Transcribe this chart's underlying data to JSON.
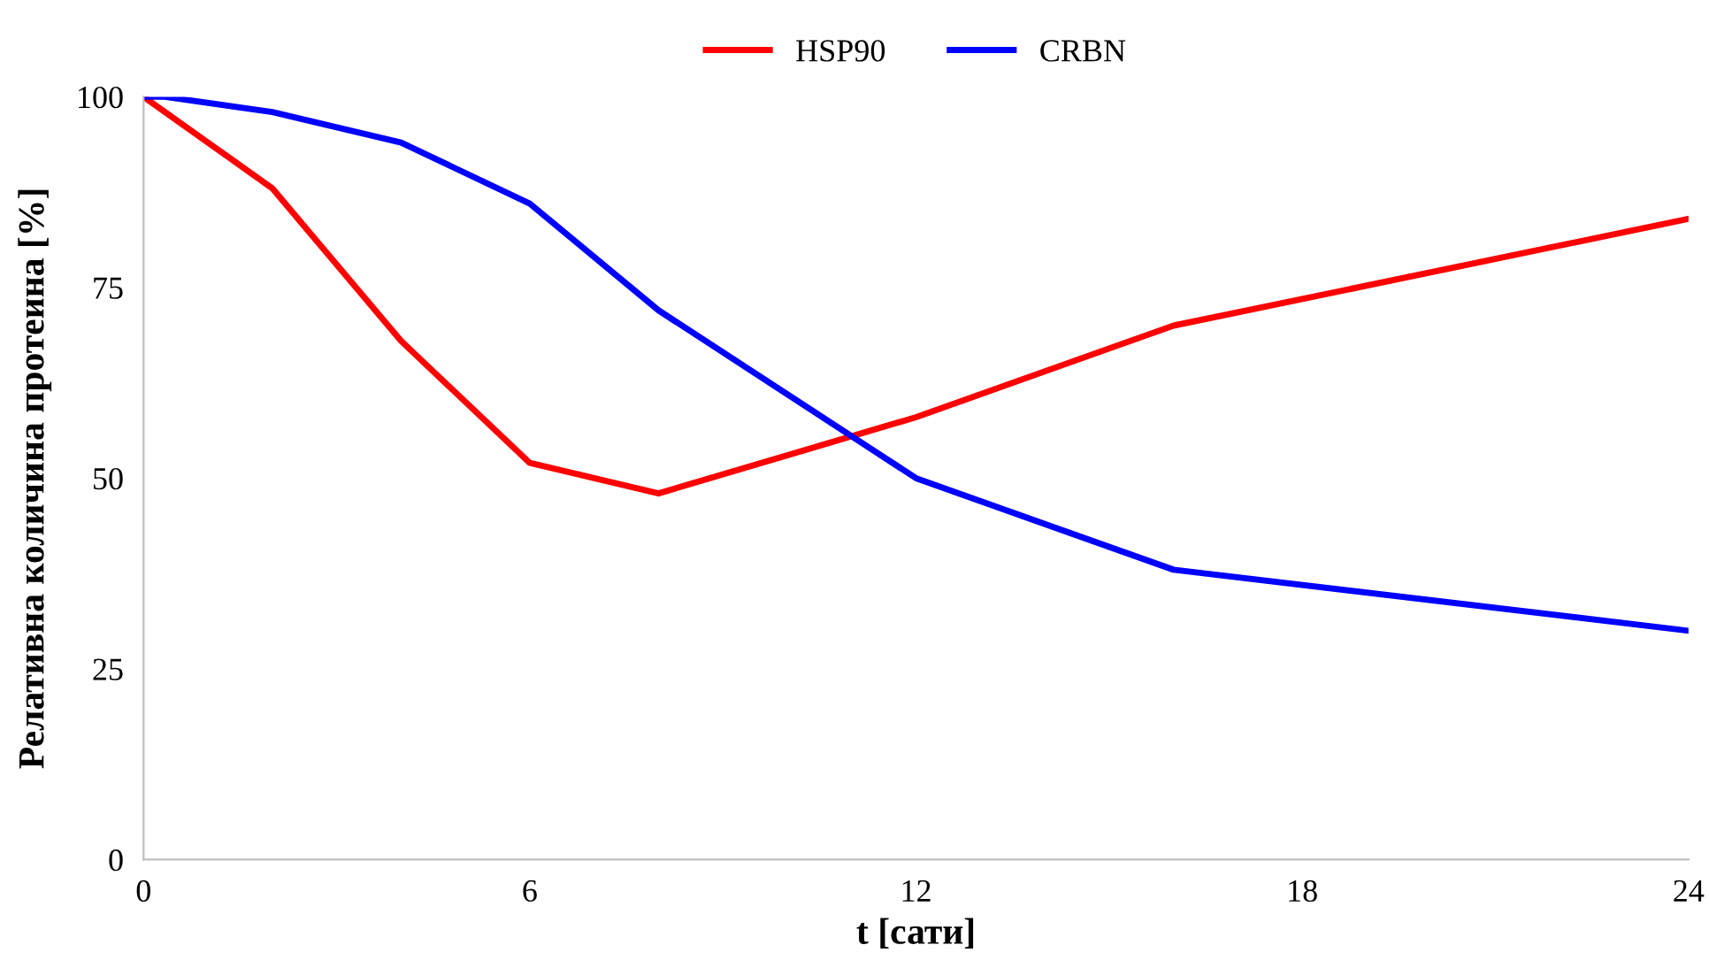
{
  "chart_data": {
    "type": "line",
    "xlabel": "t [сати]",
    "ylabel": "Релативна количина протеина [%]",
    "xlim": [
      0,
      24
    ],
    "xticks": [
      0,
      6,
      12,
      18,
      24
    ],
    "ylim": [
      0,
      100
    ],
    "yticks": [
      0,
      25,
      50,
      75,
      100
    ],
    "grid": false,
    "legend": "top",
    "marker": "none",
    "line_style": "solid",
    "series": [
      {
        "name": "HSP90",
        "color": "#ff0000",
        "x": [
          0,
          2,
          4,
          6,
          8,
          12,
          16,
          24
        ],
        "values": [
          100,
          88,
          68,
          52,
          48,
          58,
          70,
          84
        ]
      },
      {
        "name": "CRBN",
        "color": "#0000ff",
        "x": [
          0,
          0.33,
          2,
          4,
          6,
          8,
          12,
          16,
          24
        ],
        "values": [
          100,
          100,
          98,
          94,
          86,
          72,
          50,
          38,
          30
        ]
      }
    ]
  }
}
